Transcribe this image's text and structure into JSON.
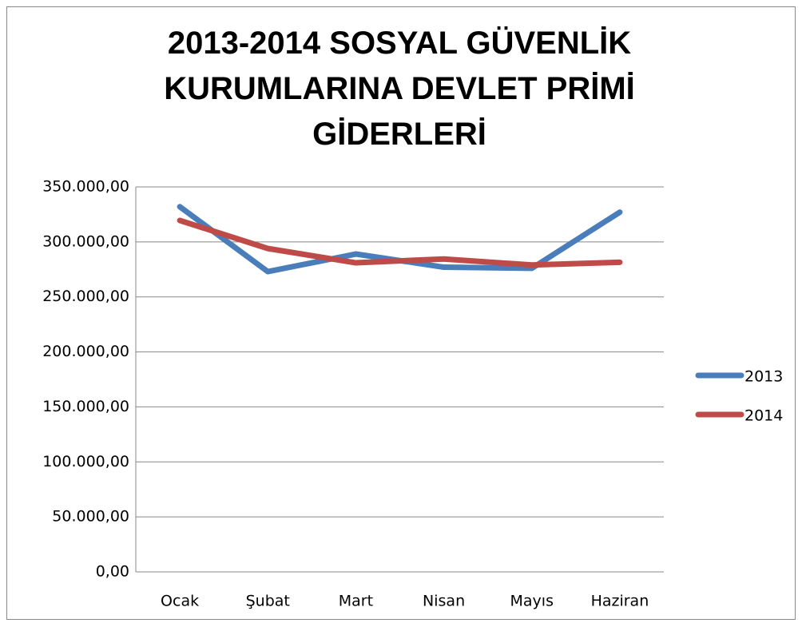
{
  "chart_data": {
    "type": "line",
    "title": "2013-2014 SOSYAL GÜVENLİK KURUMLARINA DEVLET PRİMİ GİDERLERİ",
    "categories": [
      "Ocak",
      "Şubat",
      "Mart",
      "Nisan",
      "Mayıs",
      "Haziran"
    ],
    "series": [
      {
        "name": "2013",
        "color": "#4a7ebb",
        "values": [
          332000,
          273000,
          289000,
          277000,
          276000,
          327000
        ]
      },
      {
        "name": "2014",
        "color": "#be4b48",
        "values": [
          319500,
          294000,
          281000,
          284500,
          279000,
          281500
        ]
      }
    ],
    "ylim": [
      0,
      350000
    ],
    "yticks": [
      {
        "value": 0,
        "label": "0,00"
      },
      {
        "value": 50000,
        "label": "50.000,00"
      },
      {
        "value": 100000,
        "label": "100.000,00"
      },
      {
        "value": 150000,
        "label": "150.000,00"
      },
      {
        "value": 200000,
        "label": "200.000,00"
      },
      {
        "value": 250000,
        "label": "250.000,00"
      },
      {
        "value": 300000,
        "label": "300.000,00"
      },
      {
        "value": 350000,
        "label": "350.000,00"
      }
    ],
    "grid": true,
    "legend": "right"
  }
}
